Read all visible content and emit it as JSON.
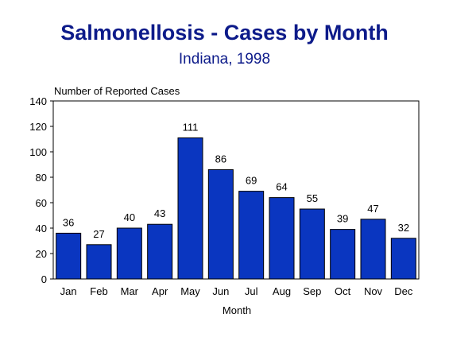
{
  "chart_data": {
    "type": "bar",
    "title": "Salmonellosis - Cases by Month",
    "subtitle": "Indiana, 1998",
    "ylabel": "Number of Reported Cases",
    "xlabel": "Month",
    "categories": [
      "Jan",
      "Feb",
      "Mar",
      "Apr",
      "May",
      "Jun",
      "Jul",
      "Aug",
      "Sep",
      "Oct",
      "Nov",
      "Dec"
    ],
    "values": [
      36,
      27,
      40,
      43,
      111,
      86,
      69,
      64,
      55,
      39,
      47,
      32
    ],
    "ylim": [
      0,
      140
    ],
    "yticks": [
      0,
      20,
      40,
      60,
      80,
      100,
      120,
      140
    ],
    "grid": false,
    "bar_color": "#0a36c0",
    "title_color": "#0d1b8a"
  }
}
